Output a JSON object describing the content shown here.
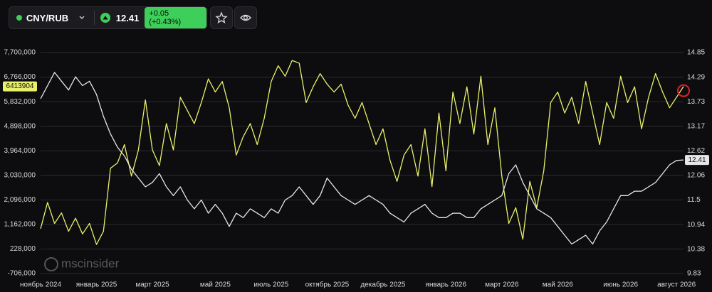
{
  "header": {
    "pair": "CNY/RUB",
    "price": "12.41",
    "change": "+0.05 (+0.43%)"
  },
  "logo": "mscinsider",
  "chart_data": {
    "type": "line",
    "categories": [
      "ноябрь 2024",
      null,
      null,
      null,
      null,
      null,
      null,
      null,
      "январь 2025",
      null,
      null,
      null,
      null,
      null,
      null,
      null,
      "март 2025",
      null,
      null,
      null,
      null,
      null,
      null,
      null,
      null,
      "май 2025",
      null,
      null,
      null,
      null,
      null,
      null,
      null,
      "июль 2025",
      null,
      null,
      null,
      null,
      null,
      null,
      null,
      "октябрь 2025",
      null,
      null,
      null,
      null,
      null,
      null,
      null,
      "декабрь 2025",
      null,
      null,
      null,
      null,
      null,
      null,
      null,
      null,
      "январь 2026",
      null,
      null,
      null,
      null,
      null,
      null,
      null,
      "март 2026",
      null,
      null,
      null,
      null,
      null,
      null,
      null,
      "май 2026",
      null,
      null,
      null,
      null,
      null,
      null,
      null,
      null,
      "июнь 2026",
      null,
      null,
      null,
      null,
      null,
      null,
      null,
      "август 2026",
      null
    ],
    "series": [
      {
        "color": "#e9f06a",
        "axis": "y",
        "values": [
          1000000,
          2000000,
          1200000,
          1600000,
          900000,
          1400000,
          800000,
          1200000,
          400000,
          900000,
          3300000,
          3500000,
          4200000,
          3000000,
          4000000,
          5900000,
          4000000,
          3400000,
          5000000,
          4000000,
          6000000,
          5500000,
          5000000,
          5800000,
          6700000,
          6200000,
          6600000,
          5600000,
          3800000,
          4500000,
          5000000,
          4200000,
          5200000,
          6600000,
          7200000,
          6800000,
          7400000,
          7300000,
          5800000,
          6400000,
          6900000,
          6500000,
          6200000,
          6500000,
          5700000,
          5200000,
          5800000,
          5000000,
          4200000,
          4800000,
          3600000,
          2800000,
          3800000,
          4200000,
          3000000,
          4800000,
          2600000,
          5400000,
          3200000,
          6200000,
          5000000,
          6400000,
          4600000,
          6800000,
          4200000,
          5600000,
          3000000,
          1200000,
          1800000,
          600000,
          2800000,
          1800000,
          3200000,
          5800000,
          6200000,
          5400000,
          6000000,
          5000000,
          6600000,
          5400000,
          4200000,
          5800000,
          5200000,
          6800000,
          5800000,
          6400000,
          4800000,
          6000000,
          6900000,
          6200000,
          5600000,
          6000000,
          6413904
        ]
      },
      {
        "color": "#e6e6e6",
        "axis": "y2",
        "values": [
          13.8,
          14.1,
          14.4,
          14.2,
          14.0,
          14.3,
          14.1,
          14.2,
          13.9,
          13.4,
          13.0,
          12.7,
          12.5,
          12.2,
          12.0,
          11.8,
          11.9,
          12.1,
          11.8,
          11.6,
          11.8,
          11.5,
          11.3,
          11.5,
          11.2,
          11.4,
          11.2,
          10.9,
          11.2,
          11.1,
          11.3,
          11.2,
          11.1,
          11.3,
          11.2,
          11.5,
          11.6,
          11.8,
          11.6,
          11.4,
          11.6,
          12.0,
          11.8,
          11.6,
          11.5,
          11.4,
          11.5,
          11.6,
          11.5,
          11.4,
          11.2,
          11.1,
          11.0,
          11.2,
          11.3,
          11.4,
          11.2,
          11.1,
          11.1,
          11.2,
          11.2,
          11.1,
          11.1,
          11.3,
          11.4,
          11.5,
          11.6,
          12.1,
          12.3,
          11.9,
          11.6,
          11.3,
          11.2,
          11.1,
          10.9,
          10.7,
          10.5,
          10.6,
          10.7,
          10.5,
          10.8,
          11.0,
          11.3,
          11.6,
          11.6,
          11.7,
          11.7,
          11.8,
          11.9,
          12.1,
          12.3,
          12.4,
          12.41
        ]
      }
    ],
    "ylim": [
      -706000,
      7700000
    ],
    "yticks": [
      {
        "value": -706000,
        "label": "-706,000"
      },
      {
        "value": 228000,
        "label": "228,000"
      },
      {
        "value": 1162000,
        "label": "1,162,000"
      },
      {
        "value": 2096000,
        "label": "2,096,000"
      },
      {
        "value": 3030000,
        "label": "3,030,000"
      },
      {
        "value": 3964000,
        "label": "3,964,000"
      },
      {
        "value": 4898000,
        "label": "4,898,000"
      },
      {
        "value": 5832000,
        "label": "5,832,000"
      },
      {
        "value": 6766000,
        "label": "6,766,000"
      },
      {
        "value": 7700000,
        "label": "7,700,000"
      }
    ],
    "y2lim": [
      9.83,
      14.85
    ],
    "y2ticks": [
      9.83,
      10.38,
      10.94,
      11.5,
      12.06,
      12.62,
      13.17,
      13.73,
      14.29,
      14.85
    ],
    "grid": true
  }
}
